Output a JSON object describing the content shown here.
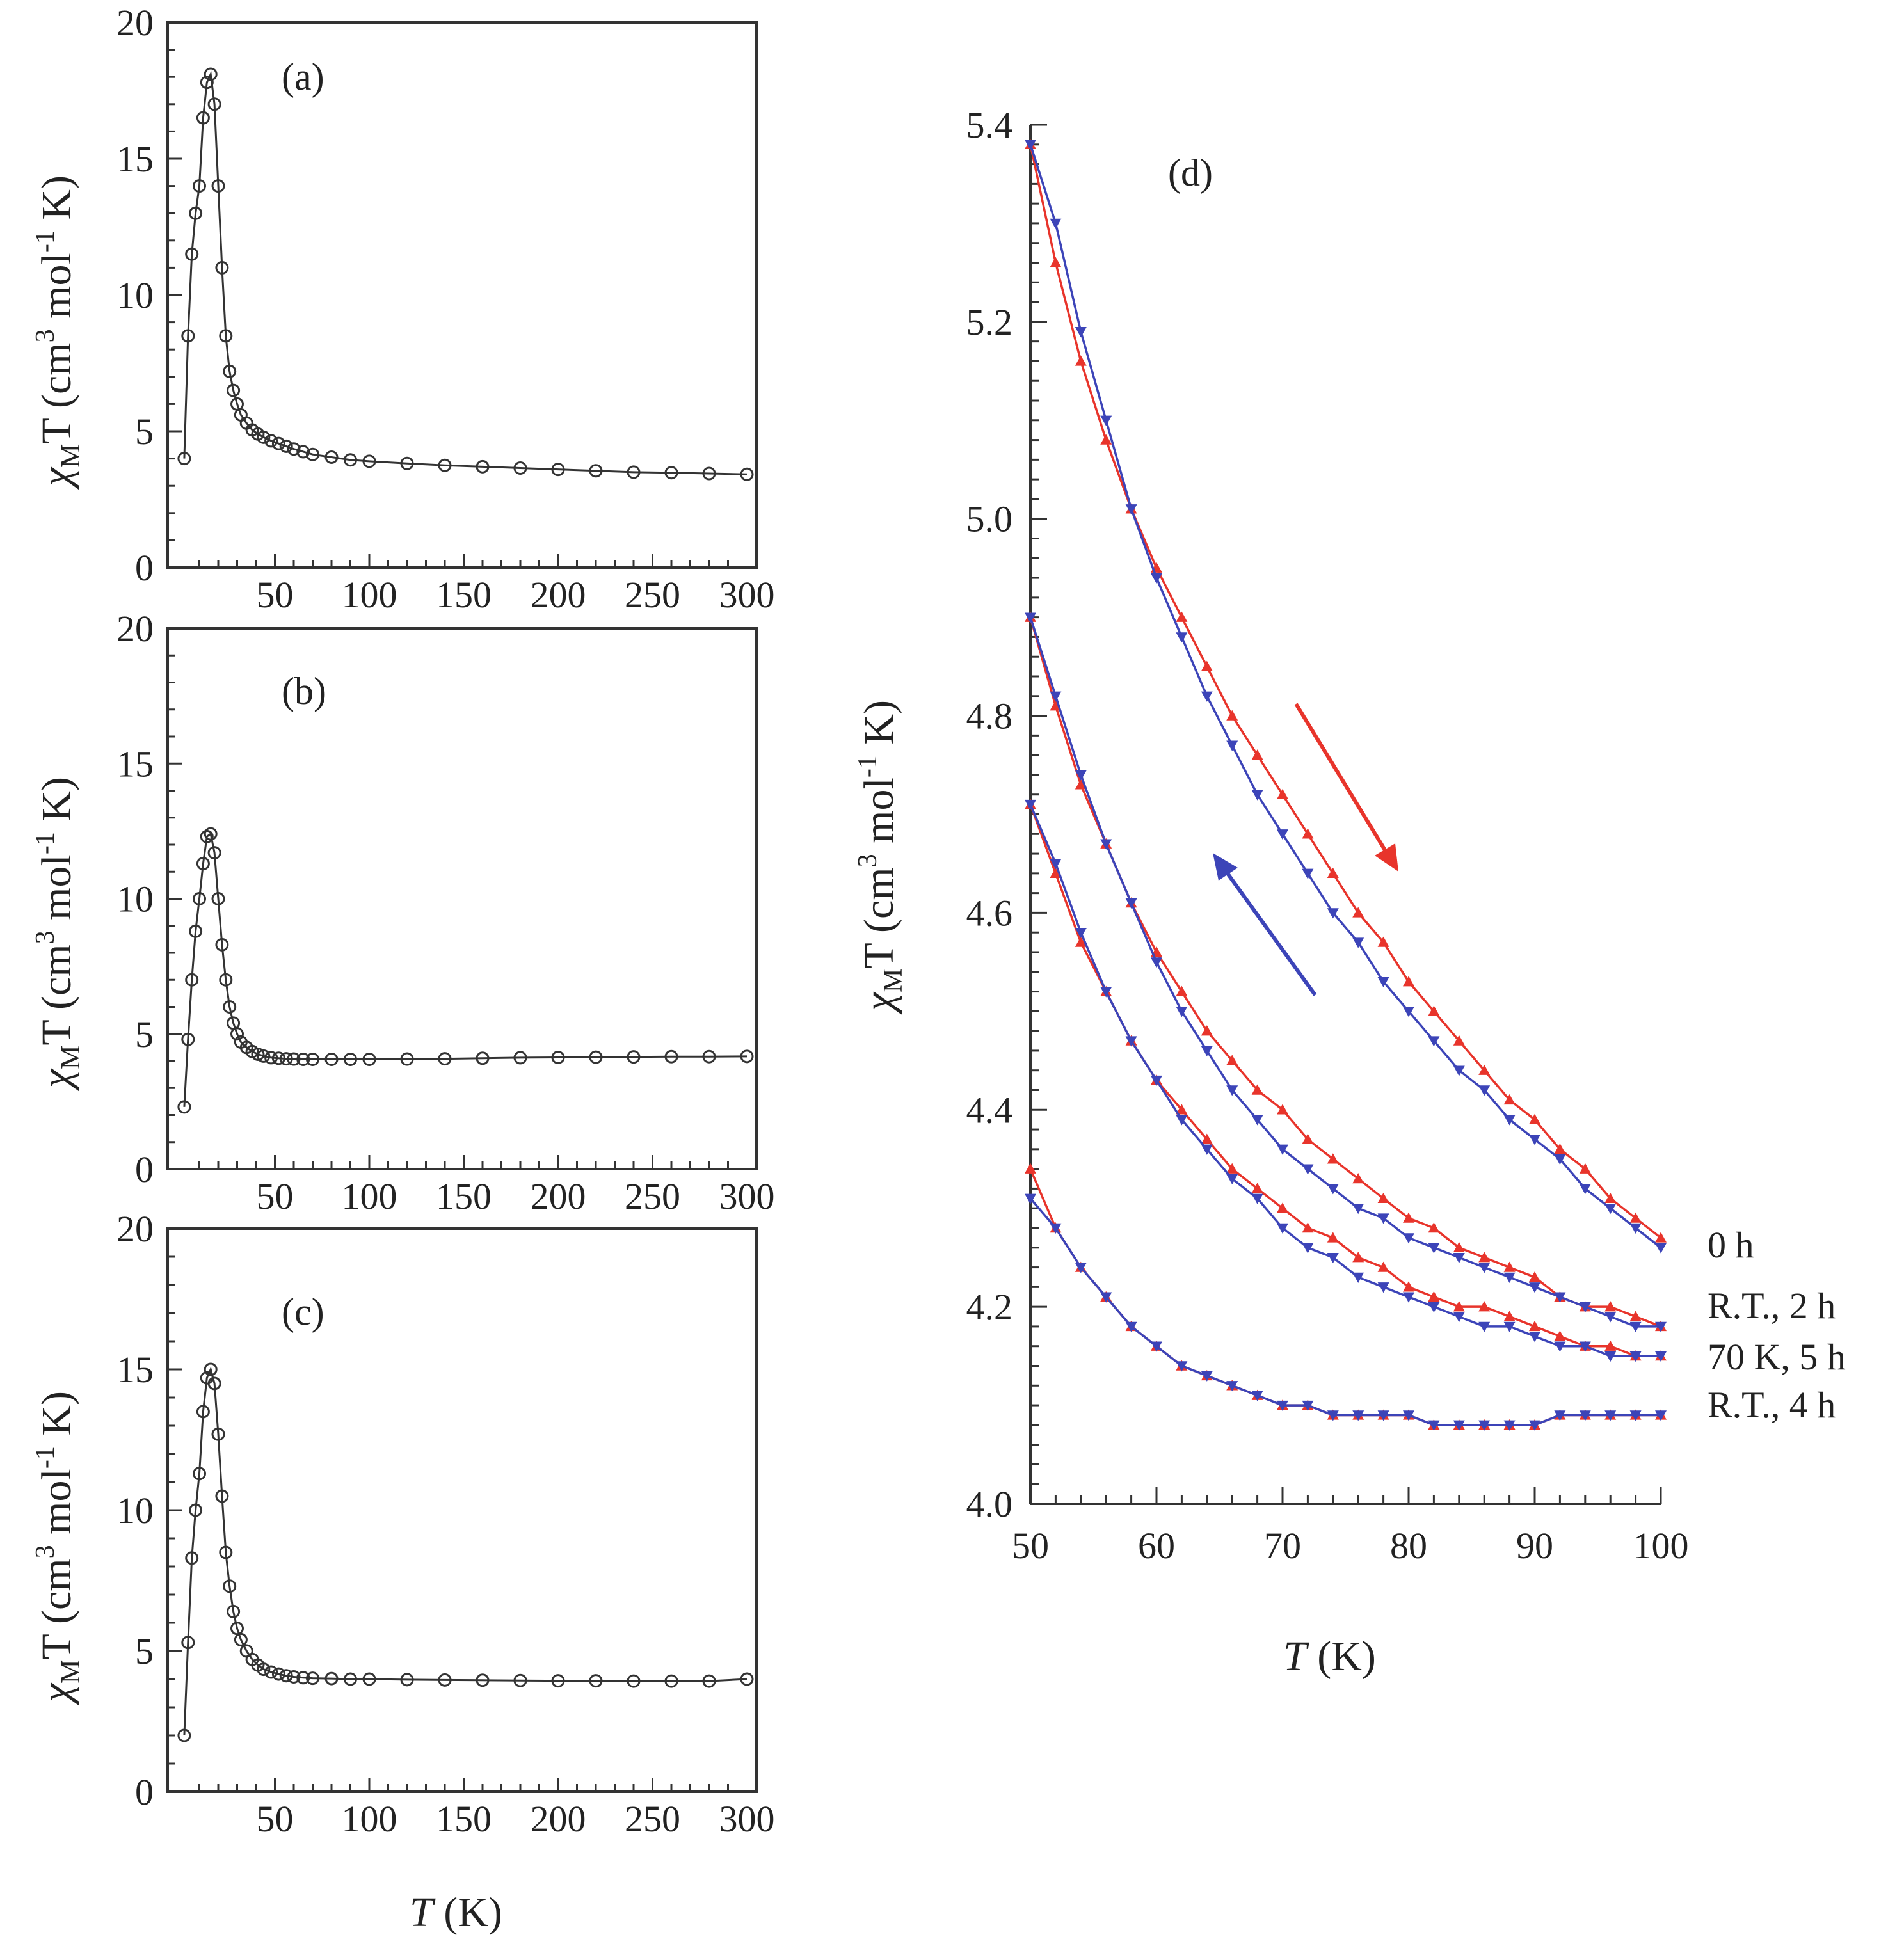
{
  "colors": {
    "heating": "#e8342b",
    "cooling": "#3c44b8",
    "mono": "#333333"
  },
  "chart_data": [
    {
      "id": "a",
      "type": "scatter",
      "panel_label": "(a)",
      "ylabel_main": "χ",
      "ylabel_sub": "M",
      "ylabel_rest": "T (cm",
      "ylabel_sup": "3",
      "ylabel_mol": " mol",
      "ylabel_sup2": "-1",
      "ylabel_end": " K)",
      "xlim": [
        0,
        300
      ],
      "ylim": [
        0,
        20
      ],
      "xticks": [
        "50",
        "100",
        "150",
        "200",
        "250",
        "300"
      ],
      "xtick_values": [
        50,
        100,
        150,
        200,
        250,
        300
      ],
      "yticks": [
        "0",
        "5",
        "10",
        "15",
        "20"
      ],
      "ytick_values": [
        0,
        5,
        10,
        15,
        20
      ],
      "x": [
        2,
        4,
        6,
        8,
        10,
        12,
        14,
        16,
        18,
        20,
        22,
        24,
        26,
        28,
        30,
        32,
        35,
        38,
        41,
        44,
        48,
        52,
        56,
        60,
        65,
        70,
        80,
        90,
        100,
        120,
        140,
        160,
        180,
        200,
        220,
        240,
        260,
        280,
        300
      ],
      "y": [
        4.0,
        8.5,
        11.5,
        13.0,
        14.0,
        16.5,
        17.8,
        18.1,
        17.0,
        14.0,
        11.0,
        8.5,
        7.2,
        6.5,
        6.0,
        5.6,
        5.3,
        5.05,
        4.9,
        4.78,
        4.65,
        4.55,
        4.45,
        4.35,
        4.25,
        4.15,
        4.05,
        3.95,
        3.9,
        3.82,
        3.75,
        3.7,
        3.65,
        3.6,
        3.55,
        3.5,
        3.48,
        3.45,
        3.42
      ]
    },
    {
      "id": "b",
      "type": "scatter",
      "panel_label": "(b)",
      "ylabel_main": "χ",
      "ylabel_sub": "M",
      "ylabel_rest": "T (cm",
      "ylabel_sup": "3",
      "ylabel_mol": " mol",
      "ylabel_sup2": "-1",
      "ylabel_end": " K)",
      "xlim": [
        0,
        300
      ],
      "ylim": [
        0,
        20
      ],
      "xticks": [
        "50",
        "100",
        "150",
        "200",
        "250",
        "300"
      ],
      "xtick_values": [
        50,
        100,
        150,
        200,
        250,
        300
      ],
      "yticks": [
        "0",
        "5",
        "10",
        "15",
        "20"
      ],
      "ytick_values": [
        0,
        5,
        10,
        15,
        20
      ],
      "x": [
        2,
        4,
        6,
        8,
        10,
        12,
        14,
        16,
        18,
        20,
        22,
        24,
        26,
        28,
        30,
        32,
        35,
        38,
        41,
        44,
        48,
        52,
        56,
        60,
        65,
        70,
        80,
        90,
        100,
        120,
        140,
        160,
        180,
        200,
        220,
        240,
        260,
        280,
        300
      ],
      "y": [
        2.3,
        4.8,
        7.0,
        8.8,
        10.0,
        11.3,
        12.3,
        12.4,
        11.7,
        10.0,
        8.3,
        7.0,
        6.0,
        5.4,
        5.0,
        4.7,
        4.5,
        4.35,
        4.25,
        4.18,
        4.12,
        4.1,
        4.08,
        4.07,
        4.06,
        4.06,
        4.06,
        4.06,
        4.06,
        4.07,
        4.08,
        4.1,
        4.12,
        4.13,
        4.14,
        4.15,
        4.16,
        4.16,
        4.17
      ]
    },
    {
      "id": "c",
      "type": "scatter",
      "panel_label": "(c)",
      "ylabel_main": "χ",
      "ylabel_sub": "M",
      "ylabel_rest": "T (cm",
      "ylabel_sup": "3",
      "ylabel_mol": " mol",
      "ylabel_sup2": "-1",
      "ylabel_end": " K)",
      "xlabel_main": "T",
      "xlabel_rest": " (K)",
      "xlim": [
        0,
        300
      ],
      "ylim": [
        0,
        20
      ],
      "xticks": [
        "50",
        "100",
        "150",
        "200",
        "250",
        "300"
      ],
      "xtick_values": [
        50,
        100,
        150,
        200,
        250,
        300
      ],
      "yticks": [
        "0",
        "5",
        "10",
        "15",
        "20"
      ],
      "ytick_values": [
        0,
        5,
        10,
        15,
        20
      ],
      "x": [
        2,
        4,
        6,
        8,
        10,
        12,
        14,
        16,
        18,
        20,
        22,
        24,
        26,
        28,
        30,
        32,
        35,
        38,
        41,
        44,
        48,
        52,
        56,
        60,
        65,
        70,
        80,
        90,
        100,
        120,
        140,
        160,
        180,
        200,
        220,
        240,
        260,
        280,
        300
      ],
      "y": [
        2.0,
        5.3,
        8.3,
        10.0,
        11.3,
        13.5,
        14.7,
        15.0,
        14.5,
        12.7,
        10.5,
        8.5,
        7.3,
        6.4,
        5.8,
        5.4,
        5.0,
        4.7,
        4.5,
        4.35,
        4.25,
        4.18,
        4.12,
        4.08,
        4.05,
        4.03,
        4.02,
        4.0,
        4.0,
        3.98,
        3.97,
        3.96,
        3.95,
        3.94,
        3.94,
        3.93,
        3.93,
        3.93,
        4.0
      ]
    },
    {
      "id": "d",
      "type": "line",
      "panel_label": "(d)",
      "ylabel_main": "χ",
      "ylabel_sub": "M",
      "ylabel_rest": "T (cm",
      "ylabel_sup": "3",
      "ylabel_mol": " mol",
      "ylabel_sup2": "-1",
      "ylabel_end": " K)",
      "xlabel_main": "T",
      "xlabel_rest": " (K)",
      "xlim": [
        50,
        100
      ],
      "ylim": [
        4.0,
        5.4
      ],
      "xticks": [
        "50",
        "60",
        "70",
        "80",
        "90",
        "100"
      ],
      "xtick_values": [
        50,
        60,
        70,
        80,
        90,
        100
      ],
      "yticks": [
        "4.0",
        "4.2",
        "4.4",
        "4.6",
        "4.8",
        "5.0",
        "5.2",
        "5.4"
      ],
      "ytick_values": [
        4.0,
        4.2,
        4.4,
        4.6,
        4.8,
        5.0,
        5.2,
        5.4
      ],
      "x": [
        50,
        52,
        54,
        56,
        58,
        60,
        62,
        64,
        66,
        68,
        70,
        72,
        74,
        76,
        78,
        80,
        82,
        84,
        86,
        88,
        90,
        92,
        94,
        96,
        98,
        100
      ],
      "series": [
        {
          "name": "0 h",
          "heating": [
            5.38,
            5.26,
            5.16,
            5.08,
            5.01,
            4.95,
            4.9,
            4.85,
            4.8,
            4.76,
            4.72,
            4.68,
            4.64,
            4.6,
            4.57,
            4.53,
            4.5,
            4.47,
            4.44,
            4.41,
            4.39,
            4.36,
            4.34,
            4.31,
            4.29,
            4.27
          ],
          "cooling": [
            5.38,
            5.3,
            5.19,
            5.1,
            5.01,
            4.94,
            4.88,
            4.82,
            4.77,
            4.72,
            4.68,
            4.64,
            4.6,
            4.57,
            4.53,
            4.5,
            4.47,
            4.44,
            4.42,
            4.39,
            4.37,
            4.35,
            4.32,
            4.3,
            4.28,
            4.26
          ]
        },
        {
          "name": "R.T., 2 h",
          "heating": [
            4.9,
            4.81,
            4.73,
            4.67,
            4.61,
            4.56,
            4.52,
            4.48,
            4.45,
            4.42,
            4.4,
            4.37,
            4.35,
            4.33,
            4.31,
            4.29,
            4.28,
            4.26,
            4.25,
            4.24,
            4.23,
            4.21,
            4.2,
            4.2,
            4.19,
            4.18
          ],
          "cooling": [
            4.9,
            4.82,
            4.74,
            4.67,
            4.61,
            4.55,
            4.5,
            4.46,
            4.42,
            4.39,
            4.36,
            4.34,
            4.32,
            4.3,
            4.29,
            4.27,
            4.26,
            4.25,
            4.24,
            4.23,
            4.22,
            4.21,
            4.2,
            4.19,
            4.18,
            4.18
          ]
        },
        {
          "name": "70 K, 5 h",
          "heating": [
            4.71,
            4.64,
            4.57,
            4.52,
            4.47,
            4.43,
            4.4,
            4.37,
            4.34,
            4.32,
            4.3,
            4.28,
            4.27,
            4.25,
            4.24,
            4.22,
            4.21,
            4.2,
            4.2,
            4.19,
            4.18,
            4.17,
            4.16,
            4.16,
            4.15,
            4.15
          ],
          "cooling": [
            4.71,
            4.65,
            4.58,
            4.52,
            4.47,
            4.43,
            4.39,
            4.36,
            4.33,
            4.31,
            4.28,
            4.26,
            4.25,
            4.23,
            4.22,
            4.21,
            4.2,
            4.19,
            4.18,
            4.18,
            4.17,
            4.16,
            4.16,
            4.15,
            4.15,
            4.15
          ]
        },
        {
          "name": "R.T., 4 h",
          "heating": [
            4.34,
            4.28,
            4.24,
            4.21,
            4.18,
            4.16,
            4.14,
            4.13,
            4.12,
            4.11,
            4.1,
            4.1,
            4.09,
            4.09,
            4.09,
            4.09,
            4.08,
            4.08,
            4.08,
            4.08,
            4.08,
            4.09,
            4.09,
            4.09,
            4.09,
            4.09
          ],
          "cooling": [
            4.31,
            4.28,
            4.24,
            4.21,
            4.18,
            4.16,
            4.14,
            4.13,
            4.12,
            4.11,
            4.1,
            4.1,
            4.09,
            4.09,
            4.09,
            4.09,
            4.08,
            4.08,
            4.08,
            4.08,
            4.08,
            4.09,
            4.09,
            4.09,
            4.09,
            4.09
          ]
        }
      ],
      "legend_position": "right"
    }
  ]
}
